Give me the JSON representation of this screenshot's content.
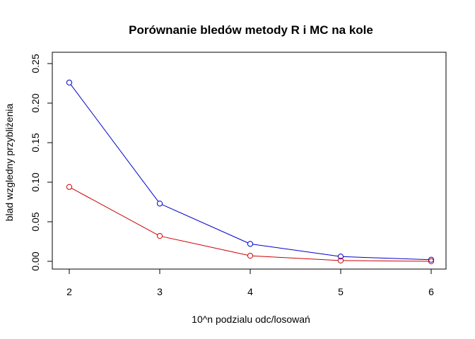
{
  "chart_data": {
    "type": "line",
    "title": "Porównanie bledów metody R i MC na kole",
    "xlabel": "10^n podzialu odc/losowań",
    "ylabel": "blad wzgledny przybliżenia",
    "x": [
      2,
      3,
      4,
      5,
      6
    ],
    "x_ticks": [
      "2",
      "3",
      "4",
      "5",
      "6"
    ],
    "y_ticks": [
      "0.00",
      "0.05",
      "0.10",
      "0.15",
      "0.20",
      "0.25"
    ],
    "xlim": [
      2,
      6
    ],
    "ylim": [
      0,
      0.25
    ],
    "grid": false,
    "marker": "open-circle",
    "series": [
      {
        "values": [
          0.226,
          0.073,
          0.022,
          0.006,
          0.002
        ],
        "color": "#0000cd"
      },
      {
        "values": [
          0.094,
          0.032,
          0.007,
          0.001,
          0.0
        ],
        "color": "#cd0000"
      }
    ]
  }
}
